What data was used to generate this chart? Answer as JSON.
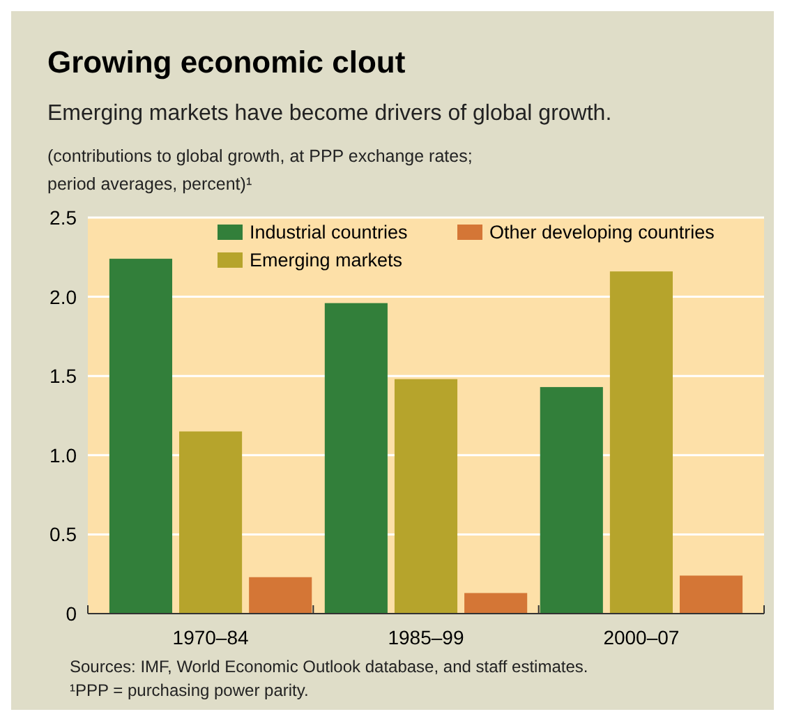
{
  "chart_data": {
    "type": "bar",
    "title": "Growing economic clout",
    "subtitle": "Emerging markets have become drivers of global growth.",
    "ylabel": "(contributions to global growth, at PPP exchange rates; period averages, percent)¹",
    "categories": [
      "1970–84",
      "1985–99",
      "2000–07"
    ],
    "series": [
      {
        "name": "Industrial countries",
        "color": "#327f3a",
        "values": [
          2.24,
          1.96,
          1.43
        ]
      },
      {
        "name": "Emerging markets",
        "color": "#b6a42c",
        "values": [
          1.15,
          1.48,
          2.16
        ]
      },
      {
        "name": "Other developing countries",
        "color": "#d47636",
        "values": [
          0.23,
          0.13,
          0.24
        ]
      }
    ],
    "ylim": [
      0,
      2.5
    ],
    "yticks": [
      {
        "value": 0,
        "label": "0"
      },
      0.5,
      {
        "value": 1,
        "label": "1.0"
      },
      1.5,
      {
        "value": 2,
        "label": "2.0"
      },
      2.5
    ],
    "grid": "y",
    "legend": "top right",
    "annotations": [
      "Sources: IMF, World Economic Outlook database, and staff estimates.",
      "¹PPP = purchasing power parity."
    ]
  }
}
